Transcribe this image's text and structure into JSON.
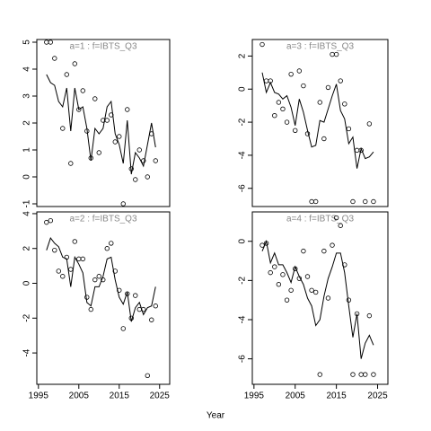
{
  "xlabel": "Year",
  "chart_data": [
    {
      "type": "line",
      "title": "a=1 : f=IBTS_Q3",
      "x": [
        1997,
        1998,
        1999,
        2000,
        2001,
        2002,
        2003,
        2004,
        2005,
        2006,
        2007,
        2008,
        2009,
        2010,
        2011,
        2012,
        2013,
        2014,
        2015,
        2016,
        2017,
        2018,
        2019,
        2020,
        2021,
        2022,
        2023,
        2024
      ],
      "xlim": [
        1994.6,
        2027.5
      ],
      "ylim": [
        -1.1,
        5.1
      ],
      "yticks": [
        -1,
        0,
        1,
        2,
        3,
        4,
        5
      ],
      "series": [
        {
          "style": "points",
          "color": "#000000",
          "values": [
            5.0,
            5.0,
            4.4,
            null,
            1.8,
            3.8,
            0.5,
            4.2,
            2.5,
            3.2,
            1.7,
            0.7,
            2.9,
            0.9,
            2.1,
            2.1,
            2.3,
            1.3,
            1.5,
            -1.0,
            2.5,
            0.3,
            -0.1,
            1.0,
            0.6,
            0.0,
            1.6,
            0.6
          ]
        },
        {
          "style": "line",
          "color": "#000000",
          "values": [
            3.8,
            3.5,
            3.4,
            2.8,
            2.6,
            3.3,
            1.7,
            3.3,
            2.5,
            2.6,
            1.8,
            0.6,
            1.8,
            1.6,
            1.8,
            2.6,
            2.8,
            1.6,
            1.2,
            0.5,
            2.1,
            0.1,
            0.9,
            0.7,
            0.4,
            1.2,
            2.0,
            1.1
          ]
        }
      ]
    },
    {
      "type": "line",
      "title": "a=3 : f=IBTS_Q3",
      "x": [
        1997,
        1998,
        1999,
        2000,
        2001,
        2002,
        2003,
        2004,
        2005,
        2006,
        2007,
        2008,
        2009,
        2010,
        2011,
        2012,
        2013,
        2014,
        2015,
        2016,
        2017,
        2018,
        2019,
        2020,
        2021,
        2022,
        2023,
        2024
      ],
      "xlim": [
        1994.6,
        2027.5
      ],
      "ylim": [
        -7.1,
        3.0
      ],
      "yticks": [
        -6,
        -4,
        -2,
        0,
        2
      ],
      "series": [
        {
          "style": "points",
          "color": "#000000",
          "values": [
            2.7,
            0.5,
            0.5,
            -1.6,
            -0.8,
            -1.2,
            -2.0,
            0.9,
            -2.5,
            1.1,
            0.2,
            -2.7,
            -6.8,
            -6.8,
            -0.8,
            -3.0,
            0.1,
            2.1,
            2.1,
            0.5,
            -0.9,
            -2.4,
            -6.8,
            -3.7,
            -3.7,
            -6.8,
            -2.1,
            -6.8
          ]
        },
        {
          "style": "line",
          "color": "#000000",
          "values": [
            1.0,
            -0.2,
            0.4,
            -0.2,
            -0.3,
            -0.6,
            -0.4,
            -1.1,
            -2.2,
            -0.6,
            -1.4,
            -2.5,
            -3.5,
            -3.4,
            -1.9,
            -2.0,
            -1.2,
            -0.4,
            0.3,
            -1.3,
            -1.8,
            -3.3,
            -2.9,
            -4.8,
            -3.6,
            -4.2,
            -4.1,
            -3.8
          ]
        }
      ]
    },
    {
      "type": "line",
      "title": "a=2 : f=IBTS_Q3",
      "x": [
        1997,
        1998,
        1999,
        2000,
        2001,
        2002,
        2003,
        2004,
        2005,
        2006,
        2007,
        2008,
        2009,
        2010,
        2011,
        2012,
        2013,
        2014,
        2015,
        2016,
        2017,
        2018,
        2019,
        2020,
        2021,
        2022,
        2023,
        2024
      ],
      "xlim": [
        1994.6,
        2027.5
      ],
      "xticks": [
        1995,
        2005,
        2015,
        2025
      ],
      "ylim": [
        -5.8,
        4.1
      ],
      "yticks": [
        -4,
        -2,
        0,
        2,
        4
      ],
      "series": [
        {
          "style": "points",
          "color": "#000000",
          "values": [
            3.5,
            3.6,
            1.9,
            0.7,
            0.4,
            1.5,
            0.8,
            2.4,
            1.4,
            1.4,
            -0.8,
            -1.5,
            0.2,
            0.4,
            0.2,
            2.0,
            2.3,
            0.7,
            -0.4,
            -2.6,
            -0.6,
            -2.0,
            -0.7,
            -1.5,
            -1.5,
            -5.3,
            -2.1,
            -1.3
          ]
        },
        {
          "style": "line",
          "color": "#000000",
          "values": [
            1.9,
            2.6,
            2.3,
            2.1,
            1.5,
            1.4,
            -0.2,
            1.5,
            1.1,
            0.6,
            -1.1,
            -1.3,
            -0.2,
            -0.2,
            0.4,
            1.4,
            1.5,
            0.2,
            -0.8,
            -1.2,
            -0.5,
            -2.2,
            -1.4,
            -1.1,
            -1.8,
            -1.4,
            -1.3,
            -0.2
          ]
        }
      ]
    },
    {
      "type": "line",
      "title": "a=4 : f=IBTS_Q3",
      "x": [
        1997,
        1998,
        1999,
        2000,
        2001,
        2002,
        2003,
        2004,
        2005,
        2006,
        2007,
        2008,
        2009,
        2010,
        2011,
        2012,
        2013,
        2014,
        2015,
        2016,
        2017,
        2018,
        2019,
        2020,
        2021,
        2022,
        2023,
        2024
      ],
      "xlim": [
        1994.6,
        2027.5
      ],
      "xticks": [
        1995,
        2005,
        2015,
        2025
      ],
      "ylim": [
        -7.3,
        1.5
      ],
      "yticks": [
        -6,
        -4,
        -2,
        0
      ],
      "series": [
        {
          "style": "points",
          "color": "#000000",
          "values": [
            -0.2,
            -0.1,
            -1.6,
            -1.3,
            -2.2,
            -1.7,
            -3.0,
            -2.5,
            -1.4,
            -1.9,
            -0.5,
            -1.8,
            -2.5,
            -2.6,
            -6.8,
            -0.5,
            -2.9,
            -0.2,
            1.2,
            0.8,
            -1.2,
            -3.0,
            -6.8,
            -3.7,
            -6.8,
            -6.8,
            -3.8,
            -6.8
          ]
        },
        {
          "style": "line",
          "color": "#000000",
          "values": [
            -0.5,
            0.0,
            -1.1,
            -0.6,
            -1.2,
            -1.2,
            -1.6,
            -2.1,
            -1.3,
            -1.8,
            -2.2,
            -2.9,
            -3.3,
            -4.3,
            -4.0,
            -2.8,
            -1.9,
            -1.3,
            -0.6,
            -0.6,
            -1.6,
            -3.3,
            -4.9,
            -3.7,
            -6.0,
            -5.2,
            -4.8,
            -5.3
          ]
        }
      ]
    }
  ]
}
